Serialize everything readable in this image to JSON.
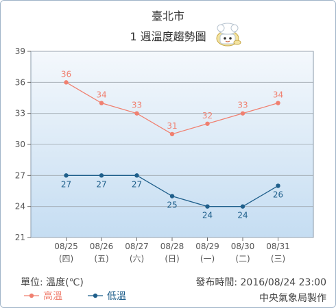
{
  "header": {
    "city": "臺北市",
    "subtitle": "1 週溫度趨勢圖"
  },
  "footer": {
    "unit_label": "單位: 溫度(℃)",
    "issued_label": "發布時間: 2016/08/24 23:00",
    "agency": "中央氣象局製作"
  },
  "colors": {
    "high": "#f08070",
    "low": "#1f5f8b",
    "plot_top": "#f4f8fc",
    "plot_bottom": "#c5ddf2",
    "grid": "#a0a8b0",
    "axis_text": "#555555"
  },
  "chart_data": {
    "type": "line",
    "categories": [
      "08/25",
      "08/26",
      "08/27",
      "08/28",
      "08/29",
      "08/30",
      "08/31"
    ],
    "category_sublabels": [
      "(四)",
      "(五)",
      "(六)",
      "(日)",
      "(一)",
      "(二)",
      "(三)"
    ],
    "series": [
      {
        "name": "高溫",
        "values": [
          36,
          34,
          33,
          31,
          32,
          33,
          34
        ]
      },
      {
        "name": "低溫",
        "values": [
          27,
          27,
          27,
          25,
          24,
          24,
          26
        ]
      }
    ],
    "ylim": [
      21,
      39
    ],
    "yticks": [
      "21",
      "24",
      "27",
      "30",
      "33",
      "36",
      "39"
    ],
    "grid": true,
    "legend": "bottom-left"
  }
}
